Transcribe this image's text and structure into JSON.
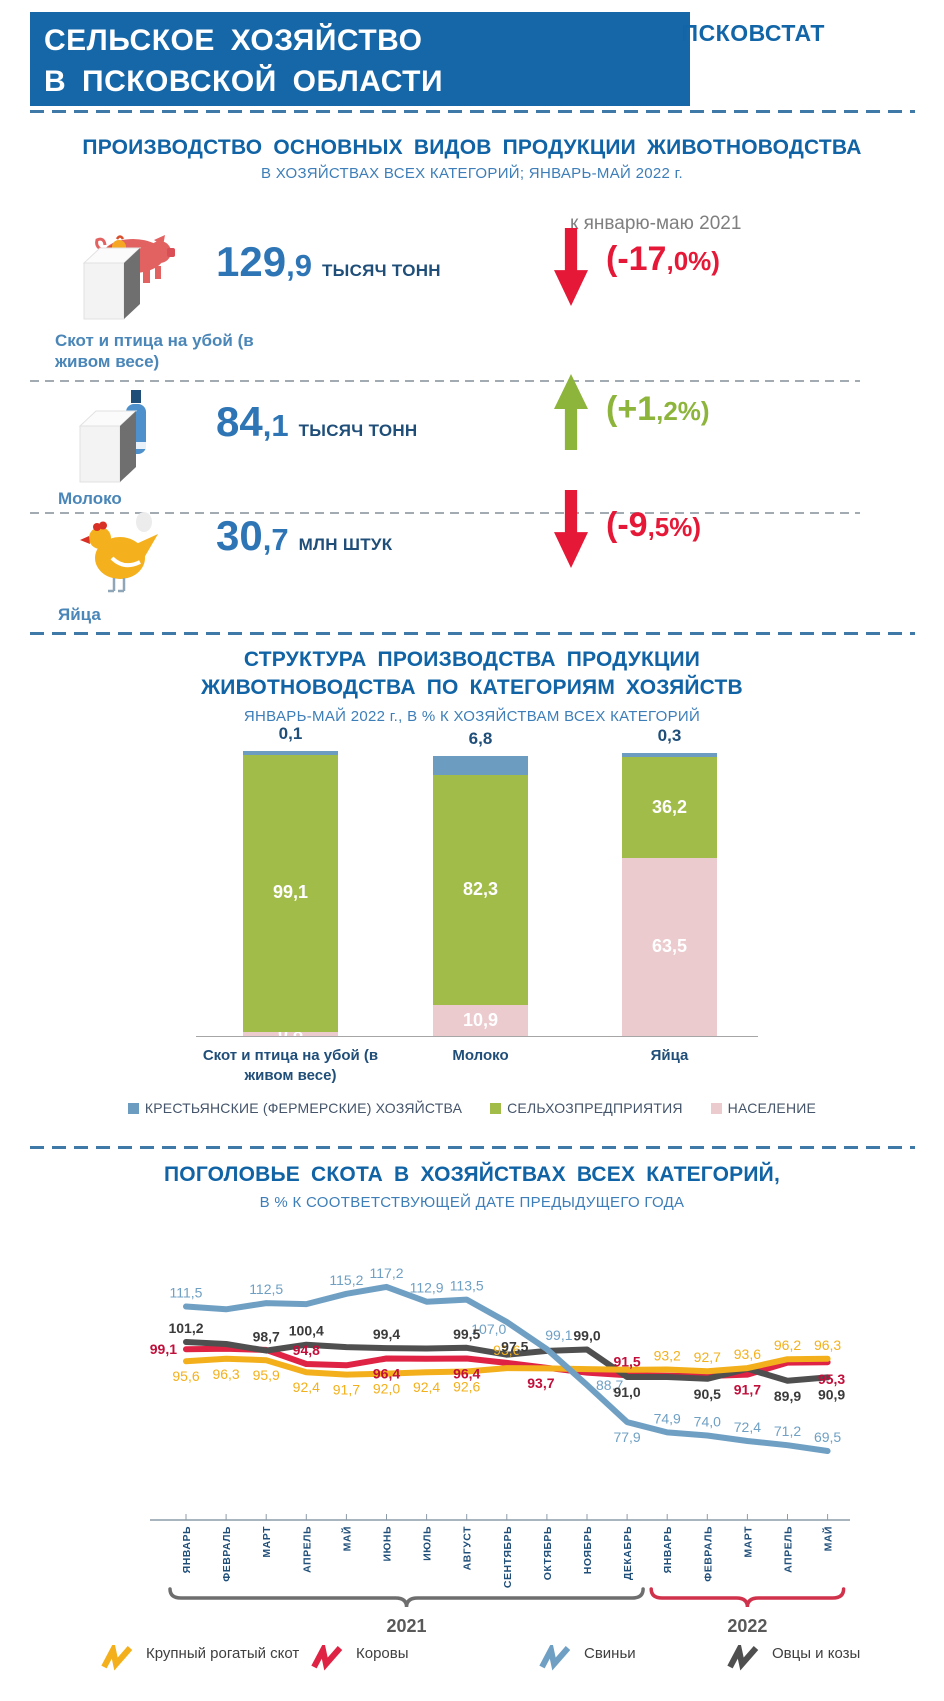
{
  "header": {
    "title_line1": "СЕЛЬСКОЕ ХОЗЯЙСТВО",
    "title_line2": "В ПСКОВСКОЙ ОБЛАСТИ",
    "brand": "ПСКОВСТАТ"
  },
  "production": {
    "title": "ПРОИЗВОДСТВО ОСНОВНЫХ ВИДОВ ПРОДУКЦИИ ЖИВОТНОВОДСТВА",
    "subtitle": "В ХОЗЯЙСТВАХ ВСЕХ КАТЕГОРИЙ; ЯНВАРЬ-МАЙ 2022 г.",
    "compare_note": "к январю-маю 2021",
    "rows": [
      {
        "icon": "pig",
        "label": "Скот и птица на убой (в живом весе)",
        "value": "129,9",
        "unit": "ТЫСЯЧ ТОНН",
        "direction": "down",
        "change": "(-17,0%)"
      },
      {
        "icon": "milk",
        "label": "Молоко",
        "value": "84,1",
        "unit": "ТЫСЯЧ ТОНН",
        "direction": "up",
        "change": "(+1,2%)"
      },
      {
        "icon": "hen",
        "label": "Яйца",
        "value": "30,7",
        "unit": "МЛН ШТУК",
        "direction": "down",
        "change": "(-9,5%)"
      }
    ]
  },
  "structure": {
    "title_line1": "СТРУКТУРА ПРОИЗВОДСТВА ПРОДУКЦИИ",
    "title_line2": "ЖИВОТНОВОДСТВА ПО КАТЕГОРИЯМ ХОЗЯЙСТВ",
    "subtitle": "ЯНВАРЬ-МАЙ 2022 г., В % К ХОЗЯЙСТВАМ ВСЕХ КАТЕГОРИЙ"
  },
  "livestock": {
    "title": "ПОГОЛОВЬЕ СКОТА В ХОЗЯЙСТВАХ ВСЕХ КАТЕГОРИЙ,",
    "subtitle": "В % К СООТВЕТСТВУЮЩЕЙ ДАТЕ ПРЕДЫДУЩЕГО ГОДА"
  },
  "colors": {
    "header_bg": "#1567A8",
    "title_blue": "#1063A5",
    "subtitle_blue": "#3D7EB8",
    "value_blue": "#2E75B6",
    "dark_navy": "#1F4E79",
    "note_gray": "#7F7F7F",
    "red": "#E51937",
    "green": "#8DB43B",
    "bar_blue": "#6D9CC1",
    "bar_green": "#A2BC4A",
    "bar_pink": "#EBCBCE",
    "line_yellow": "#F3B01C",
    "line_red": "#DE2344",
    "line_blue": "#6FA0C4",
    "line_gray": "#4F4F4F"
  },
  "chart_data": [
    {
      "type": "bar",
      "stacked": true,
      "title": "СТРУКТУРА ПРОИЗВОДСТВА ПРОДУКЦИИ ЖИВОТНОВОДСТВА ПО КАТЕГОРИЯМ ХОЗЯЙСТВ",
      "unit": "%",
      "ylim": [
        0,
        100
      ],
      "grid": false,
      "legend_position": "bottom",
      "categories": [
        "Скот и птица на убой (в живом весе)",
        "Молоко",
        "Яйца"
      ],
      "series": [
        {
          "name": "КРЕСТЬЯНСКИЕ (ФЕРМЕРСКИЕ) ХОЗЯЙСТВА",
          "color": "#6D9CC1",
          "values": [
            0.1,
            6.8,
            0.3
          ]
        },
        {
          "name": "СЕЛЬХОЗПРЕДПРИЯТИЯ",
          "color": "#A2BC4A",
          "values": [
            99.1,
            82.3,
            36.2
          ]
        },
        {
          "name": "НАСЕЛЕНИЕ",
          "color": "#EBCBCE",
          "values": [
            0.8,
            10.9,
            63.5
          ]
        }
      ],
      "top_labels": [
        "0,1",
        "6,8",
        "0,3"
      ],
      "segment_labels": [
        [
          "",
          "99,1",
          "0,8"
        ],
        [
          "",
          "82,3",
          "10,9"
        ],
        [
          "",
          "36,2",
          "63,5"
        ]
      ]
    },
    {
      "type": "line",
      "title": "ПОГОЛОВЬЕ СКОТА В ХОЗЯЙСТВАХ ВСЕХ КАТЕГОРИЙ, В % К СООТВЕТСТВУЮЩЕЙ ДАТЕ ПРЕДЫДУЩЕГО ГОДА",
      "ylim": [
        65,
        120
      ],
      "grid": false,
      "legend_position": "bottom",
      "x_labels": [
        "ЯНВАРЬ",
        "ФЕВРАЛЬ",
        "МАРТ",
        "АПРЕЛЬ",
        "МАЙ",
        "ИЮНЬ",
        "ИЮЛЬ",
        "АВГУСТ",
        "СЕНТЯБРЬ",
        "ОКТЯБРЬ",
        "НОЯБРЬ",
        "ДЕКАБРЬ",
        "ЯНВАРЬ",
        "ФЕВРАЛЬ",
        "МАРТ",
        "АПРЕЛЬ",
        "МАЙ"
      ],
      "year_groups": [
        {
          "label": "2021",
          "start": 0,
          "end": 11,
          "brace_color": "#6E6E6E"
        },
        {
          "label": "2022",
          "start": 12,
          "end": 16,
          "brace_color": "#D0314B"
        }
      ],
      "draw_order": [
        1,
        3,
        0,
        2
      ],
      "series": [
        {
          "name": "Крупный рогатый скот",
          "color": "#F3B01C",
          "bold_labels": false,
          "values": [
            95.6,
            96.3,
            95.9,
            92.4,
            91.7,
            92.0,
            92.4,
            92.6,
            93.6,
            93.5,
            93.3,
            93.1,
            93.2,
            92.7,
            93.6,
            96.2,
            96.3
          ],
          "shown_labels": [
            [
              0,
              "95,6",
              "b"
            ],
            [
              1,
              "96,3",
              "b"
            ],
            [
              2,
              "95,9",
              "b"
            ],
            [
              3,
              "92,4",
              "b"
            ],
            [
              4,
              "91,7",
              "b"
            ],
            [
              5,
              "92,0",
              "b"
            ],
            [
              6,
              "92,4",
              "b"
            ],
            [
              7,
              "92,6",
              "b"
            ],
            [
              8,
              "93,6",
              "a",
              0,
              -4
            ],
            [
              12,
              "93,2",
              "a"
            ],
            [
              13,
              "92,7",
              "a"
            ],
            [
              14,
              "93,6",
              "a"
            ],
            [
              15,
              "96,2",
              "a"
            ],
            [
              16,
              "96,3",
              "a"
            ]
          ]
        },
        {
          "name": "Коровы",
          "color": "#DE2344",
          "label_color": "#C20E3A",
          "bold_labels": true,
          "values": [
            99.1,
            99.2,
            98.9,
            94.8,
            94.4,
            96.4,
            96.3,
            96.4,
            95.1,
            93.7,
            92.3,
            91.5,
            91.4,
            91.3,
            91.7,
            95.2,
            95.3
          ],
          "shown_labels": [
            [
              0,
              "99,1",
              "l"
            ],
            [
              3,
              "94,8",
              "a"
            ],
            [
              5,
              "96,4",
              "b"
            ],
            [
              7,
              "96,4",
              "b"
            ],
            [
              9,
              "93,7",
              "b",
              -6,
              0
            ],
            [
              11,
              "91,5",
              "a"
            ],
            [
              14,
              "91,7",
              "b"
            ],
            [
              16,
              "95,3",
              "b",
              4,
              2
            ]
          ]
        },
        {
          "name": "Свиньи",
          "color": "#6FA0C4",
          "bold_labels": false,
          "values": [
            111.5,
            110.7,
            112.5,
            112.2,
            115.2,
            117.2,
            112.9,
            113.5,
            107.0,
            99.1,
            88.7,
            77.9,
            74.9,
            74.0,
            72.4,
            71.2,
            69.5
          ],
          "shown_labels": [
            [
              0,
              "111,5",
              "a"
            ],
            [
              2,
              "112,5",
              "a"
            ],
            [
              4,
              "115,2",
              "a"
            ],
            [
              5,
              "117,2",
              "a"
            ],
            [
              6,
              "112,9",
              "a"
            ],
            [
              7,
              "113,5",
              "a"
            ],
            [
              8,
              "107,0",
              "b",
              -18,
              -8
            ],
            [
              9,
              "99,1",
              "a",
              12,
              0
            ],
            [
              10,
              "88,7",
              "r"
            ],
            [
              11,
              "77,9",
              "b"
            ],
            [
              12,
              "74,9",
              "a"
            ],
            [
              13,
              "74,0",
              "a"
            ],
            [
              14,
              "72,4",
              "a"
            ],
            [
              15,
              "71,2",
              "a"
            ],
            [
              16,
              "69,5",
              "a"
            ]
          ]
        },
        {
          "name": "Овцы и козы",
          "color": "#4F4F4F",
          "label_color": "#3B3B3B",
          "bold_labels": true,
          "values": [
            101.2,
            100.6,
            98.7,
            100.4,
            99.7,
            99.4,
            99.3,
            99.5,
            97.5,
            98.6,
            99.0,
            91.0,
            91.0,
            90.5,
            93.4,
            89.9,
            90.9
          ],
          "shown_labels": [
            [
              0,
              "101,2",
              "a"
            ],
            [
              2,
              "98,7",
              "a"
            ],
            [
              3,
              "100,4",
              "a"
            ],
            [
              5,
              "99,4",
              "a"
            ],
            [
              7,
              "99,5",
              "a"
            ],
            [
              8,
              "97,5",
              "a",
              8,
              6
            ],
            [
              10,
              "99,0",
              "a"
            ],
            [
              11,
              "91,0",
              "b"
            ],
            [
              13,
              "90,5",
              "b"
            ],
            [
              15,
              "89,9",
              "b"
            ],
            [
              16,
              "90,9",
              "b",
              4,
              2
            ]
          ]
        }
      ]
    }
  ]
}
